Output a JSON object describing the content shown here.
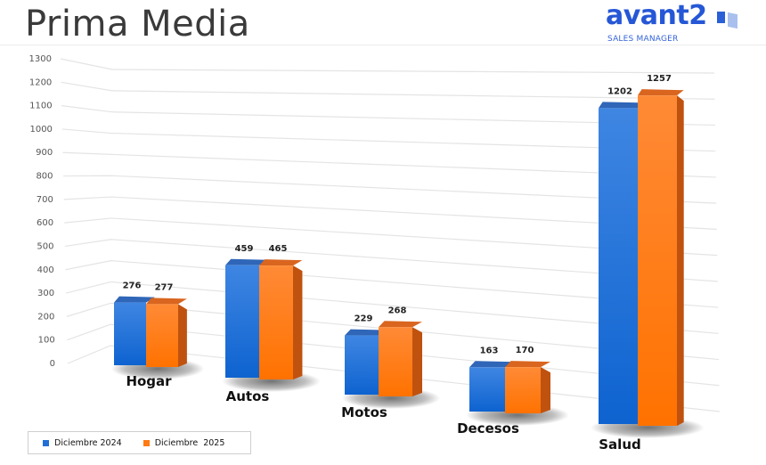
{
  "header": {
    "title": "Prima Media",
    "logo": {
      "word": "avant2",
      "tagline": "SALES MANAGER",
      "brand_color": "#2557d6"
    }
  },
  "legend": {
    "items": [
      {
        "label": "Diciembre 2024",
        "color": "#1f6fd6"
      },
      {
        "label": "Diciembre  2025",
        "color": "#ff7a12"
      }
    ]
  },
  "chart_data": {
    "type": "bar",
    "title": "Prima Media",
    "xlabel": "",
    "ylabel": "",
    "ylim": [
      0,
      1300
    ],
    "yticks": [
      0,
      100,
      200,
      300,
      400,
      500,
      600,
      700,
      800,
      900,
      1000,
      1100,
      1200,
      1300
    ],
    "grid": true,
    "legend_position": "bottom-left",
    "style": "3d-clustered-column",
    "categories": [
      "Hogar",
      "Autos",
      "Motos",
      "Decesos",
      "Salud"
    ],
    "series": [
      {
        "name": "Diciembre 2024",
        "color": "#1f6fd6",
        "values": [
          276,
          459,
          229,
          163,
          1202
        ]
      },
      {
        "name": "Diciembre  2025",
        "color": "#ff7a12",
        "values": [
          277,
          465,
          268,
          170,
          1257
        ]
      }
    ]
  }
}
